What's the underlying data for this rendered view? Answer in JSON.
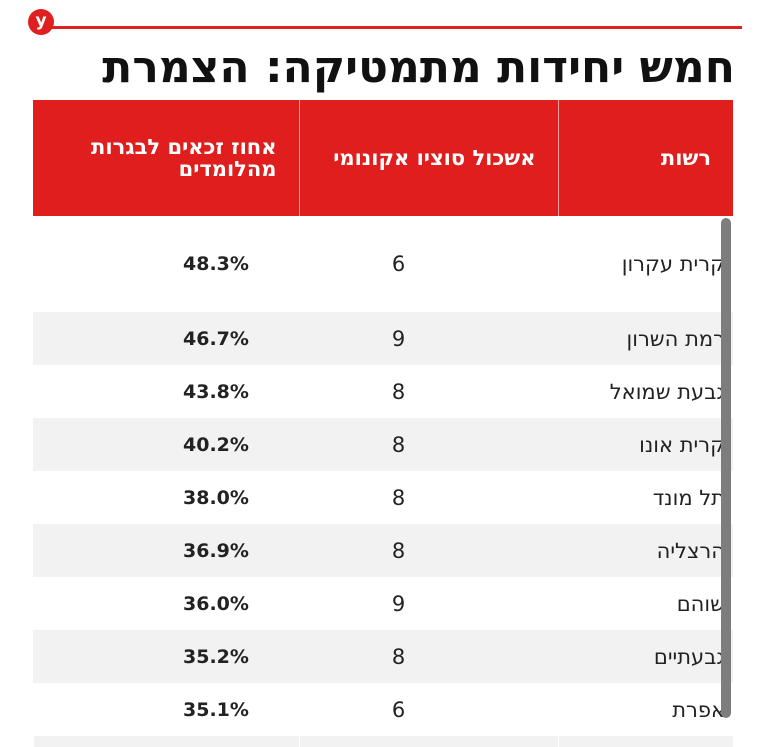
{
  "logo": {
    "letter": "y"
  },
  "title": "חמש יחידות מתמטיקה: הצמרת",
  "table": {
    "headers": {
      "name": "רשות",
      "cluster": "אשכול סוציו אקונומי",
      "pct": "אחוז זכאים לבגרות מהלומדים"
    },
    "rows": [
      {
        "name": "קרית עקרון",
        "cluster": "6",
        "pct": "48.3%"
      },
      {
        "name": "רמת השרון",
        "cluster": "9",
        "pct": "46.7%"
      },
      {
        "name": "גבעת שמואל",
        "cluster": "8",
        "pct": "43.8%"
      },
      {
        "name": "קרית אונו",
        "cluster": "8",
        "pct": "40.2%"
      },
      {
        "name": "תל מונד",
        "cluster": "8",
        "pct": "38.0%"
      },
      {
        "name": "הרצליה",
        "cluster": "8",
        "pct": "36.9%"
      },
      {
        "name": "שוהם",
        "cluster": "9",
        "pct": "36.0%"
      },
      {
        "name": "גבעתיים",
        "cluster": "8",
        "pct": "35.2%"
      },
      {
        "name": "אפרת",
        "cluster": "6",
        "pct": "35.1%"
      }
    ]
  },
  "colors": {
    "accent": "#e01e1e",
    "row_alt": "#f2f2f2",
    "scrollbar": "#7d7d7d"
  }
}
